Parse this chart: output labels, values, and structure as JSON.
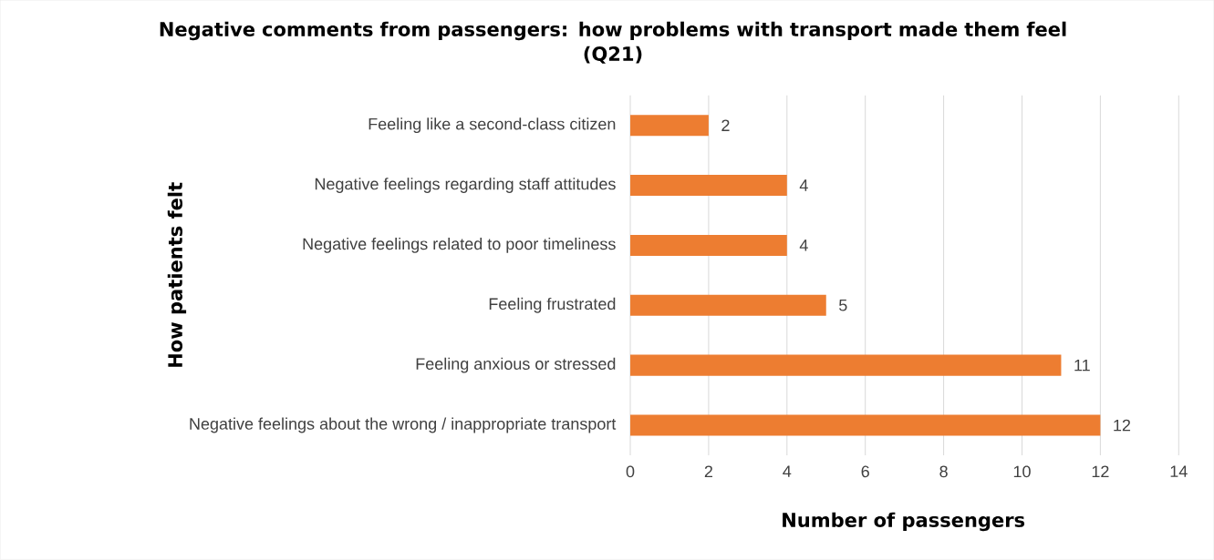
{
  "chart_data": {
    "type": "bar",
    "orientation": "horizontal",
    "title": "Negative comments from passengers: how problems with transport made them feel (Q21)",
    "xlabel": "Number of passengers",
    "ylabel": "How patients felt",
    "categories": [
      "Feeling like a second-class citizen",
      "Negative feelings regarding staff attitudes",
      "Negative feelings related to poor timeliness",
      "Feeling frustrated",
      "Feeling anxious or stressed",
      "Negative feelings about the wrong / inappropriate transport"
    ],
    "values": [
      2,
      4,
      4,
      5,
      11,
      12
    ],
    "color": "#ed7d31",
    "xlim": [
      0,
      14
    ],
    "xticks": [
      0,
      2,
      4,
      6,
      8,
      10,
      12,
      14
    ],
    "grid": "x",
    "data_labels": true
  }
}
